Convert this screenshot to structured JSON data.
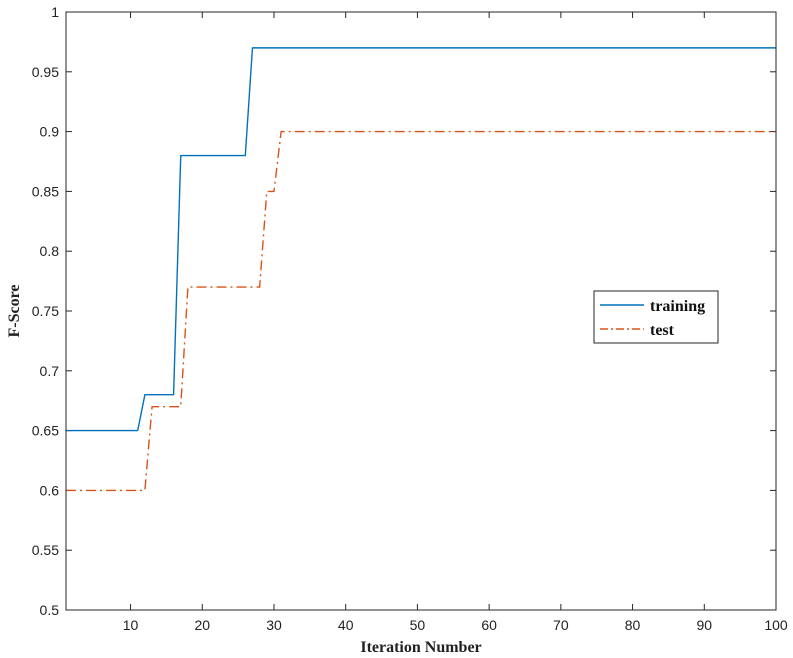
{
  "chart_data": {
    "type": "line",
    "title": "",
    "xlabel": "Iteration Number",
    "ylabel": "F-Score",
    "xlim": [
      1,
      100
    ],
    "ylim": [
      0.5,
      1
    ],
    "x_ticks": [
      10,
      20,
      30,
      40,
      50,
      60,
      70,
      80,
      90,
      100
    ],
    "x_tick_labels": [
      "10",
      "20",
      "30",
      "40",
      "50",
      "60",
      "70",
      "80",
      "90",
      "100"
    ],
    "y_ticks": [
      0.5,
      0.55,
      0.6,
      0.65,
      0.7,
      0.75,
      0.8,
      0.85,
      0.9,
      0.95,
      1
    ],
    "y_tick_labels": [
      "0.5",
      "0.55",
      "0.6",
      "0.65",
      "0.7",
      "0.75",
      "0.8",
      "0.85",
      "0.9",
      "0.95",
      "1"
    ],
    "grid": false,
    "legend_position": "right",
    "series": [
      {
        "name": "training",
        "color": "#0072BD",
        "line_style": "solid",
        "x": [
          1,
          11,
          12,
          16,
          17,
          26,
          27,
          100
        ],
        "y": [
          0.65,
          0.65,
          0.68,
          0.68,
          0.88,
          0.88,
          0.97,
          0.97
        ]
      },
      {
        "name": "test",
        "color": "#D95319",
        "line_style": "dash-dot",
        "x": [
          1,
          12,
          13,
          17,
          18,
          28,
          29,
          30,
          31,
          100
        ],
        "y": [
          0.6,
          0.6,
          0.67,
          0.67,
          0.77,
          0.77,
          0.85,
          0.85,
          0.9,
          0.9
        ]
      }
    ]
  }
}
